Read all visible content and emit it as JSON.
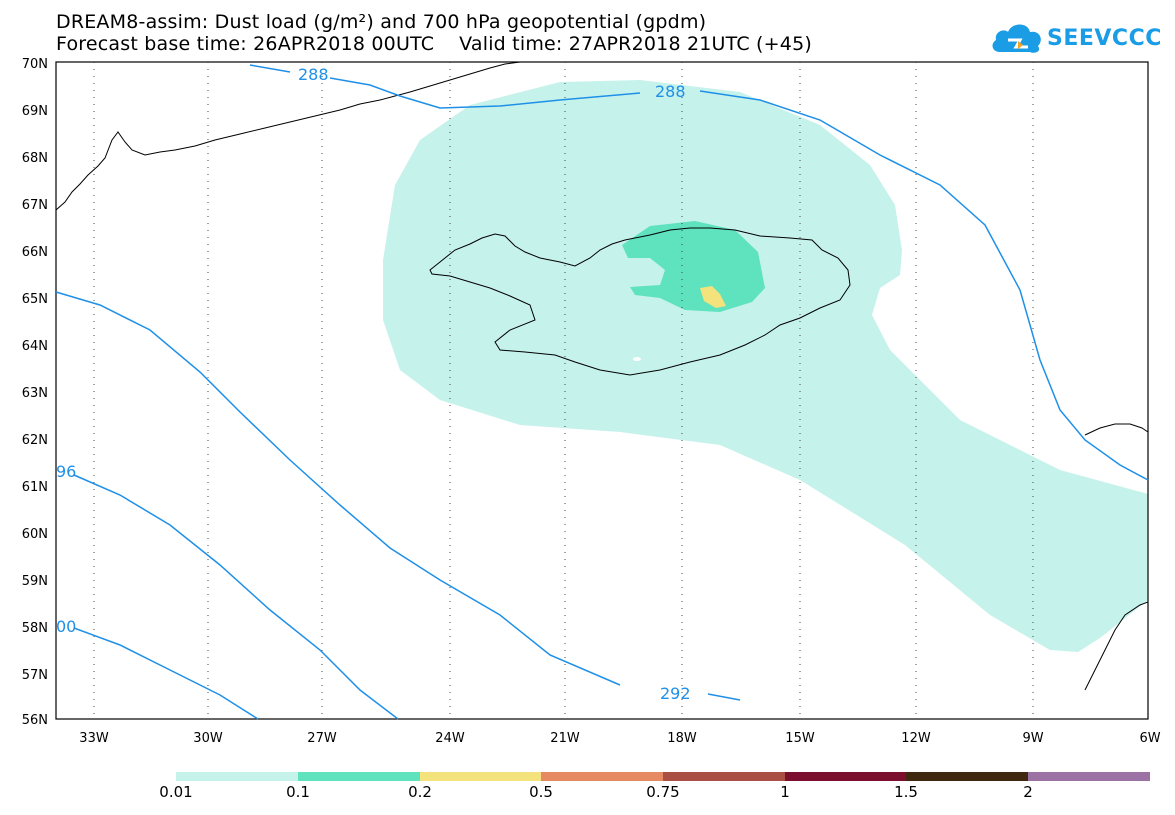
{
  "header": {
    "title_line1": "DREAM8-assim: Dust load (g/m²) and 700 hPa geopotential (gpdm)",
    "title_line2": "Forecast base time: 26APR2018 00UTC    Valid time: 27APR2018 21UTC (+45)"
  },
  "logo": {
    "text": "SEEVCCC",
    "icon": "cloud-icon"
  },
  "map": {
    "region": "North Atlantic / Iceland",
    "lat_labels": [
      "70N",
      "69N",
      "68N",
      "67N",
      "66N",
      "65N",
      "64N",
      "63N",
      "62N",
      "61N",
      "60N",
      "59N",
      "58N",
      "57N",
      "56N"
    ],
    "lon_labels": [
      "33W",
      "30W",
      "27W",
      "24W",
      "21W",
      "18W",
      "15W",
      "12W",
      "9W",
      "6W"
    ],
    "grid": "dotted",
    "contour_color": "#1e90e8",
    "contour_labels": [
      {
        "text": "288"
      },
      {
        "text": "288"
      },
      {
        "text": "96"
      },
      {
        "text": "00"
      },
      {
        "text": "292"
      }
    ],
    "dust_shading": [
      {
        "level": "0.01-0.1",
        "color": "#c6f2ec"
      },
      {
        "level": "0.1-0.2",
        "color": "#5fe2be"
      },
      {
        "level": "0.2-0.5",
        "color": "#f4e27c"
      }
    ]
  },
  "colorbar": {
    "colors": [
      "#c6f2ec",
      "#5fe2be",
      "#f4e27c",
      "#e58a63",
      "#a94f44",
      "#7c0f2d",
      "#40280f",
      "#9b72a3"
    ],
    "labels": [
      "0.01",
      "0.1",
      "0.2",
      "0.5",
      "0.75",
      "1",
      "1.5",
      "2"
    ]
  }
}
